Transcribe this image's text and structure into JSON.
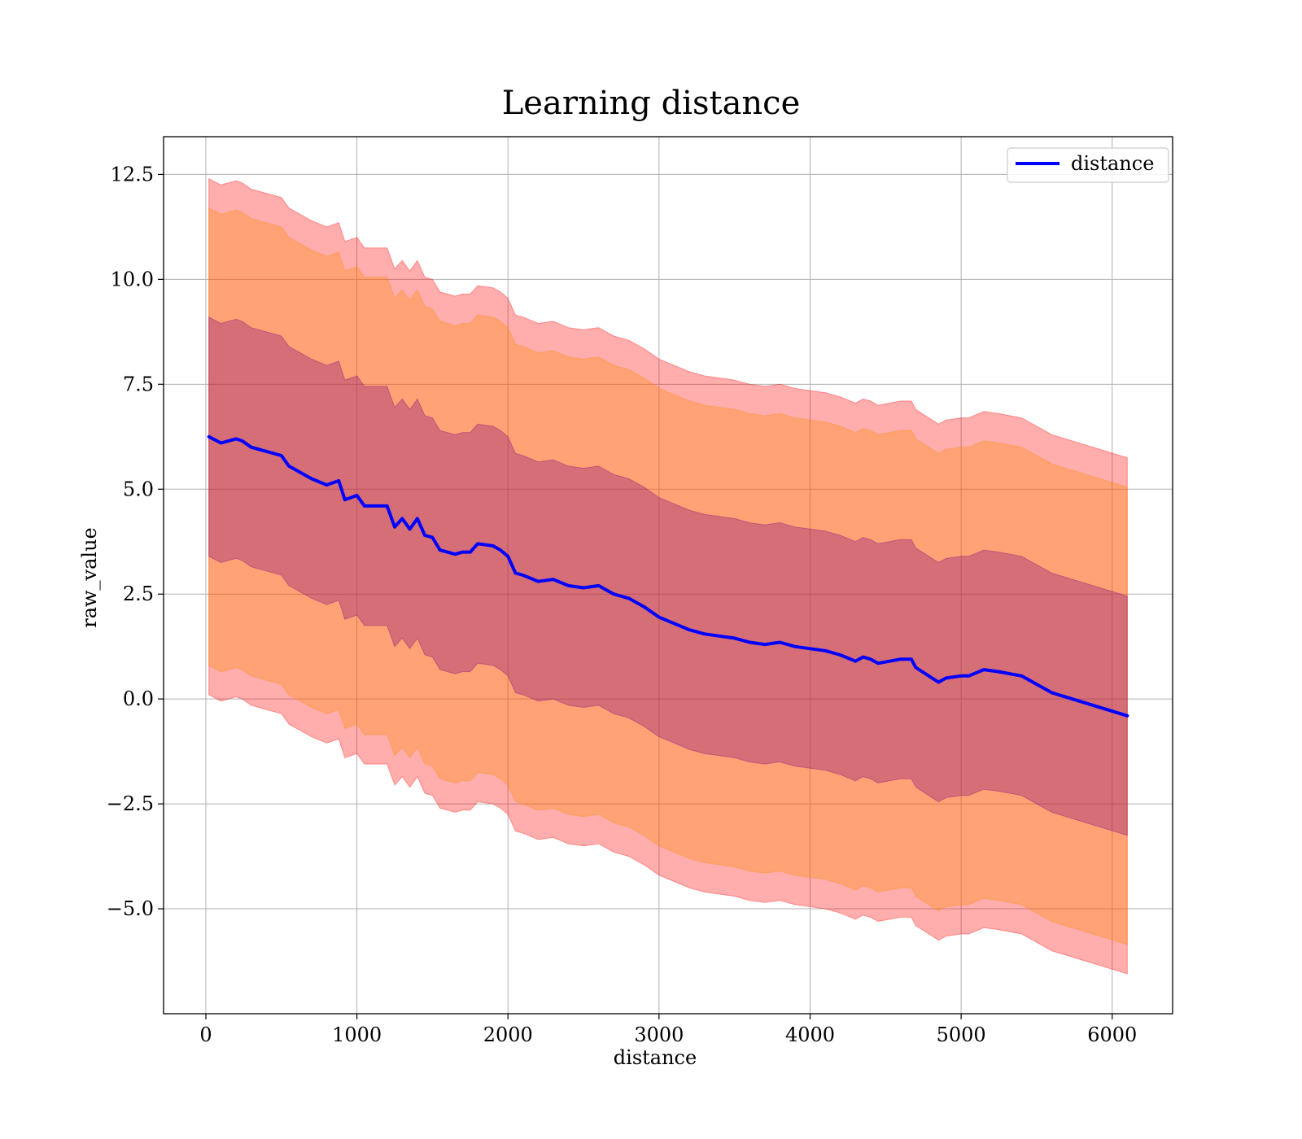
{
  "chart_data": {
    "type": "line",
    "title": "Learning distance",
    "xlabel": "distance",
    "ylabel": "raw_value",
    "xlim": [
      -280,
      6400
    ],
    "ylim": [
      -7.5,
      13.4
    ],
    "xticks": [
      0,
      1000,
      2000,
      3000,
      4000,
      5000,
      6000
    ],
    "xtick_labels": [
      "0",
      "1000",
      "2000",
      "3000",
      "4000",
      "5000",
      "6000"
    ],
    "yticks": [
      -5.0,
      -2.5,
      0.0,
      2.5,
      5.0,
      7.5,
      10.0,
      12.5
    ],
    "ytick_labels": [
      "−5.0",
      "−2.5",
      "0.0",
      "2.5",
      "5.0",
      "7.5",
      "10.0",
      "12.5"
    ],
    "grid": true,
    "legend": {
      "position": "top-right",
      "entries": [
        "distance"
      ]
    },
    "series": [
      {
        "name": "distance",
        "style": "line",
        "color": "#0000ff",
        "x": [
          20,
          100,
          200,
          240,
          300,
          400,
          500,
          550,
          650,
          700,
          800,
          880,
          920,
          1000,
          1050,
          1100,
          1200,
          1250,
          1300,
          1350,
          1400,
          1450,
          1500,
          1550,
          1650,
          1700,
          1750,
          1800,
          1900,
          1950,
          2000,
          2050,
          2100,
          2200,
          2300,
          2400,
          2500,
          2600,
          2700,
          2800,
          2900,
          3000,
          3100,
          3200,
          3300,
          3400,
          3500,
          3600,
          3700,
          3800,
          3900,
          4000,
          4100,
          4200,
          4300,
          4350,
          4400,
          4450,
          4600,
          4670,
          4700,
          4850,
          4900,
          5000,
          5050,
          5150,
          5250,
          5400,
          5600,
          6100
        ],
        "y": [
          6.25,
          6.1,
          6.2,
          6.15,
          6.0,
          5.9,
          5.8,
          5.55,
          5.35,
          5.25,
          5.1,
          5.2,
          4.75,
          4.85,
          4.6,
          4.6,
          4.6,
          4.1,
          4.3,
          4.05,
          4.3,
          3.9,
          3.85,
          3.55,
          3.45,
          3.5,
          3.5,
          3.7,
          3.65,
          3.55,
          3.4,
          3.0,
          2.95,
          2.8,
          2.85,
          2.7,
          2.65,
          2.7,
          2.5,
          2.4,
          2.2,
          1.95,
          1.8,
          1.65,
          1.55,
          1.5,
          1.45,
          1.35,
          1.3,
          1.35,
          1.25,
          1.2,
          1.15,
          1.05,
          0.9,
          1.0,
          0.95,
          0.85,
          0.95,
          0.95,
          0.75,
          0.4,
          0.5,
          0.55,
          0.55,
          0.7,
          0.65,
          0.55,
          0.15,
          -0.4
        ]
      },
      {
        "name": "",
        "style": "band",
        "role": "mean ± 1 std",
        "color": "#800080",
        "offset": 2.85
      },
      {
        "name": "",
        "style": "band",
        "role": "mean ± 2 std",
        "color": "#ff8c00",
        "offset": 5.45
      },
      {
        "name": "",
        "style": "band",
        "role": "mean ± 3 std",
        "color": "#ff0000",
        "offset": 6.15
      }
    ]
  }
}
